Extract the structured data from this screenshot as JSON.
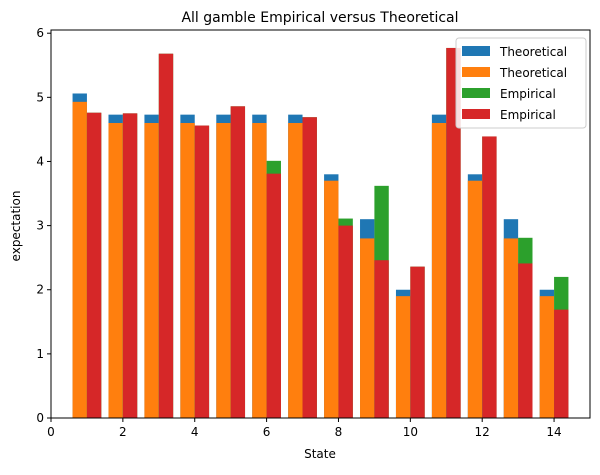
{
  "chart_data": {
    "type": "bar",
    "title": "All gamble Empirical versus Theoretical",
    "xlabel": "State",
    "ylabel": "expectation",
    "xlim": [
      0,
      15
    ],
    "ylim": [
      0,
      6.05
    ],
    "xticks": [
      0,
      2,
      4,
      6,
      8,
      10,
      12,
      14
    ],
    "yticks": [
      0,
      1,
      2,
      3,
      4,
      5,
      6
    ],
    "grid": false,
    "legend_position": "top-right",
    "x": [
      1,
      2,
      3,
      4,
      5,
      6,
      7,
      8,
      9,
      10,
      11,
      12,
      13,
      14
    ],
    "series": [
      {
        "name": "Theoretical",
        "color": "#1f77b4",
        "offset": -0.2,
        "values": [
          5.06,
          4.73,
          4.73,
          4.73,
          4.73,
          4.73,
          4.73,
          3.8,
          3.1,
          2.0,
          4.73,
          3.8,
          3.1,
          2.0
        ]
      },
      {
        "name": "Theoretical",
        "color": "#ff7f0e",
        "offset": -0.2,
        "values": [
          4.93,
          4.6,
          4.6,
          4.6,
          4.6,
          4.6,
          4.6,
          3.7,
          2.8,
          1.9,
          4.6,
          3.7,
          2.8,
          1.9
        ]
      },
      {
        "name": "Empirical",
        "color": "#2ca02c",
        "offset": 0.2,
        "values": [
          4.76,
          4.75,
          5.68,
          4.56,
          4.86,
          4.01,
          4.69,
          3.11,
          3.62,
          2.36,
          5.77,
          4.39,
          2.81,
          2.2
        ]
      },
      {
        "name": "Empirical",
        "color": "#d62728",
        "offset": 0.2,
        "values": [
          4.76,
          4.75,
          5.68,
          4.56,
          4.86,
          3.81,
          4.69,
          3.0,
          2.46,
          2.36,
          5.77,
          4.39,
          2.41,
          1.69
        ]
      }
    ]
  }
}
